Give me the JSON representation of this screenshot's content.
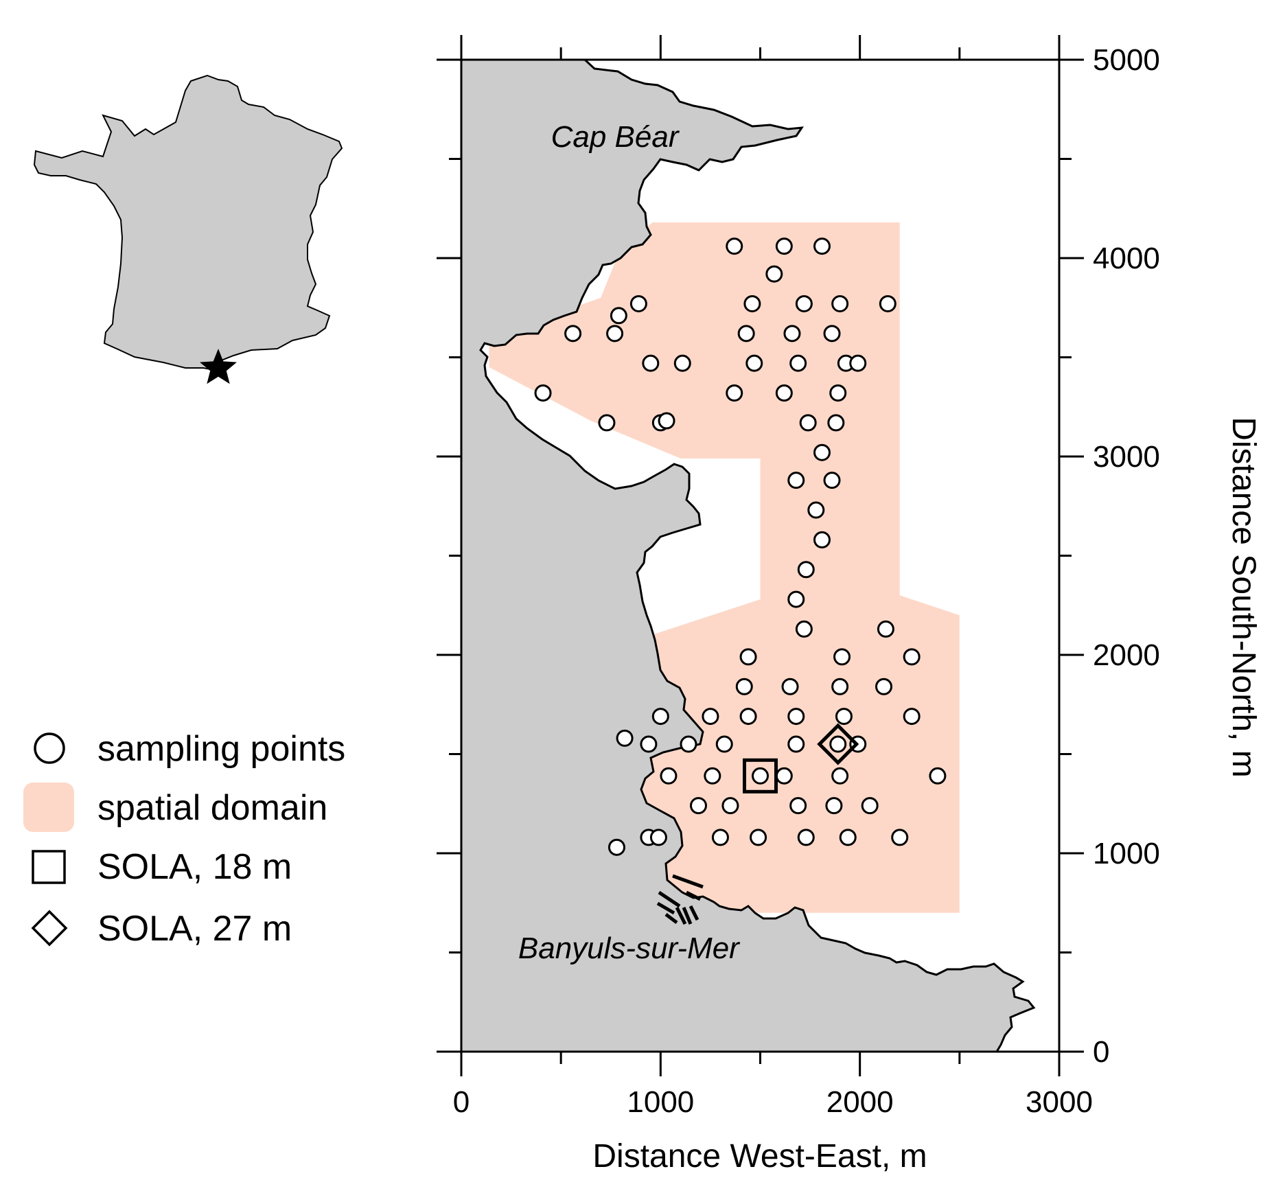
{
  "colors": {
    "land": "#cccccc",
    "domain": "#fdd8c8",
    "ink": "#000000",
    "point_fill": "#ffffff"
  },
  "inset": {
    "icon": "star-icon",
    "label": ""
  },
  "chart_data": {
    "type": "scatter",
    "title": "",
    "xlabel": "Distance West-East, m",
    "ylabel": "Distance South-North, m",
    "xlim": [
      0,
      3000
    ],
    "ylim": [
      0,
      5000
    ],
    "x_major_ticks": [
      0,
      1000,
      2000,
      3000
    ],
    "x_minor_ticks": [
      500,
      1500,
      2500
    ],
    "y_major_ticks": [
      0,
      1000,
      2000,
      3000,
      4000,
      5000
    ],
    "y_minor_ticks": [
      500,
      1500,
      2500,
      3500,
      4500
    ],
    "x_tick_labels": [
      "0",
      "1000",
      "2000",
      "3000"
    ],
    "y_tick_labels": [
      "0",
      "1000",
      "2000",
      "3000",
      "4000",
      "5000"
    ],
    "y_axis_side": "right",
    "grid": false,
    "legend_placement": "left",
    "place_labels": [
      {
        "text": "Cap Béar",
        "x": 770,
        "y": 4560
      },
      {
        "text": "Banyuls-sur-Mer",
        "x": 840,
        "y": 470
      }
    ],
    "spatial_domain": [
      [
        960,
        4180
      ],
      [
        2200,
        4180
      ],
      [
        2200,
        2300
      ],
      [
        2500,
        2200
      ],
      [
        2500,
        700
      ],
      [
        1000,
        700
      ],
      [
        1000,
        1000
      ],
      [
        500,
        1300
      ],
      [
        500,
        1950
      ],
      [
        1500,
        2280
      ],
      [
        1500,
        2990
      ],
      [
        1100,
        2990
      ],
      [
        650,
        3180
      ],
      [
        140,
        3450
      ],
      [
        140,
        3600
      ],
      [
        700,
        3800
      ],
      [
        800,
        4050
      ]
    ],
    "legend": [
      {
        "marker": "circle",
        "label": "sampling points"
      },
      {
        "marker": "patch",
        "label": "spatial domain"
      },
      {
        "marker": "square",
        "label": "SOLA, 18 m"
      },
      {
        "marker": "diamond",
        "label": "SOLA, 27 m"
      }
    ],
    "series": [
      {
        "marker": "circle",
        "points": [
          [
            1370,
            4060
          ],
          [
            1620,
            4060
          ],
          [
            1810,
            4060
          ],
          [
            1570,
            3920
          ],
          [
            890,
            3770
          ],
          [
            1460,
            3770
          ],
          [
            1720,
            3770
          ],
          [
            1900,
            3770
          ],
          [
            2140,
            3770
          ],
          [
            790,
            3710
          ],
          [
            560,
            3620
          ],
          [
            770,
            3620
          ],
          [
            1430,
            3620
          ],
          [
            1660,
            3620
          ],
          [
            1860,
            3620
          ],
          [
            950,
            3470
          ],
          [
            1110,
            3470
          ],
          [
            1470,
            3470
          ],
          [
            1690,
            3470
          ],
          [
            1930,
            3470
          ],
          [
            1990,
            3470
          ],
          [
            410,
            3320
          ],
          [
            1370,
            3320
          ],
          [
            1620,
            3320
          ],
          [
            1890,
            3320
          ],
          [
            730,
            3170
          ],
          [
            1000,
            3170
          ],
          [
            1030,
            3180
          ],
          [
            1740,
            3170
          ],
          [
            1880,
            3170
          ],
          [
            1810,
            3020
          ],
          [
            1680,
            2880
          ],
          [
            1860,
            2880
          ],
          [
            1780,
            2730
          ],
          [
            1810,
            2580
          ],
          [
            1730,
            2430
          ],
          [
            1680,
            2280
          ],
          [
            1720,
            2130
          ],
          [
            2130,
            2130
          ],
          [
            1440,
            1990
          ],
          [
            1910,
            1990
          ],
          [
            2260,
            1990
          ],
          [
            1420,
            1840
          ],
          [
            1650,
            1840
          ],
          [
            1900,
            1840
          ],
          [
            2120,
            1840
          ],
          [
            1000,
            1690
          ],
          [
            1250,
            1690
          ],
          [
            1440,
            1690
          ],
          [
            1680,
            1690
          ],
          [
            1920,
            1690
          ],
          [
            2260,
            1690
          ],
          [
            820,
            1580
          ],
          [
            940,
            1550
          ],
          [
            1140,
            1550
          ],
          [
            1320,
            1550
          ],
          [
            1680,
            1550
          ],
          [
            1890,
            1550
          ],
          [
            1990,
            1550
          ],
          [
            1040,
            1390
          ],
          [
            1260,
            1390
          ],
          [
            1500,
            1390
          ],
          [
            1620,
            1390
          ],
          [
            1900,
            1390
          ],
          [
            2390,
            1390
          ],
          [
            1190,
            1240
          ],
          [
            1350,
            1240
          ],
          [
            1690,
            1240
          ],
          [
            1870,
            1240
          ],
          [
            2050,
            1240
          ],
          [
            940,
            1080
          ],
          [
            990,
            1080
          ],
          [
            1300,
            1080
          ],
          [
            1490,
            1080
          ],
          [
            1730,
            1080
          ],
          [
            1940,
            1080
          ],
          [
            2200,
            1080
          ],
          [
            780,
            1030
          ]
        ]
      },
      {
        "marker": "square",
        "name": "SOLA, 18 m",
        "points": [
          [
            1500,
            1390
          ]
        ]
      },
      {
        "marker": "diamond",
        "name": "SOLA, 27 m",
        "points": [
          [
            1890,
            1550
          ]
        ]
      }
    ]
  }
}
